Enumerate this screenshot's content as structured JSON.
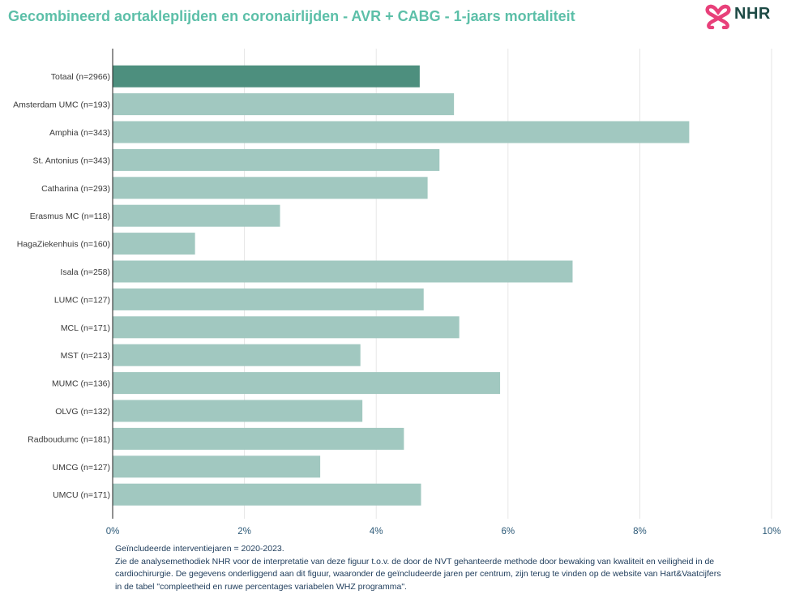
{
  "title": "Gecombineerd aortakleplijden en coronairlijden - AVR + CABG - 1-jaars mortaliteit",
  "logo": {
    "text": "NHR",
    "icon": "nhr-logo-icon"
  },
  "colors": {
    "title": "#5cbfa8",
    "total_bar": "#4d8f7e",
    "bar": "#a1c8c0",
    "axis_text": "#2d5a78",
    "label_text": "#3a3a3a",
    "grid": "#e6e6e6"
  },
  "chart_data": {
    "type": "bar",
    "orientation": "horizontal",
    "categories": [
      "Totaal (n=2966)",
      "Amsterdam UMC (n=193)",
      "Amphia (n=343)",
      "St. Antonius (n=343)",
      "Catharina (n=293)",
      "Erasmus MC (n=118)",
      "HagaZiekenhuis (n=160)",
      "Isala (n=258)",
      "LUMC (n=127)",
      "MCL (n=171)",
      "MST (n=213)",
      "MUMC (n=136)",
      "OLVG (n=132)",
      "Radboudumc (n=181)",
      "UMCG (n=127)",
      "UMCU (n=171)"
    ],
    "values": [
      4.66,
      5.18,
      8.75,
      4.96,
      4.78,
      2.54,
      1.25,
      6.98,
      4.72,
      5.26,
      3.76,
      5.88,
      3.79,
      4.42,
      3.15,
      4.68
    ],
    "highlight_index": 0,
    "xlim": [
      0,
      10
    ],
    "xticks": [
      0,
      2,
      4,
      6,
      8,
      10
    ],
    "xtick_labels": [
      "0%",
      "2%",
      "4%",
      "6%",
      "8%",
      "10%"
    ],
    "grid": true,
    "xlabel": "",
    "ylabel": ""
  },
  "footnote": {
    "line1": "Geïncludeerde interventiejaren = 2020-2023.",
    "line2": "Zie de analysemethodiek NHR voor de interpretatie van deze figuur t.o.v. de door de NVT gehanteerde methode door bewaking van kwaliteit en veiligheid in de",
    "line3": " cardiochirurgie. De gegevens onderliggend aan dit figuur, waaronder de geïncludeerde jaren per centrum, zijn terug te vinden op de website van Hart&Vaatcijfers",
    "line4": " in de tabel \"compleetheid en ruwe percentages variabelen WHZ programma\"."
  }
}
